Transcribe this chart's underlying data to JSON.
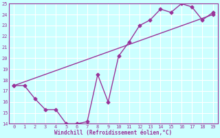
{
  "line1_x": [
    0,
    19
  ],
  "line1_y": [
    17.5,
    24.0
  ],
  "line2_x": [
    0,
    1,
    2,
    3,
    4,
    5,
    6,
    7,
    8,
    9,
    10,
    11,
    12,
    13,
    14,
    15,
    16,
    17,
    18,
    19
  ],
  "line2_y": [
    17.5,
    17.5,
    16.3,
    15.3,
    15.3,
    14.0,
    14.0,
    14.2,
    18.5,
    16.0,
    20.2,
    21.5,
    23.0,
    23.5,
    24.5,
    24.2,
    25.0,
    24.7,
    23.5,
    24.2
  ],
  "color": "#993399",
  "bg_color": "#ccffff",
  "grid_color": "#ffffff",
  "xlabel": "Windchill (Refroidissement éolien,°C)",
  "ylim": [
    14,
    25
  ],
  "xlim": [
    -0.5,
    19.5
  ],
  "yticks": [
    14,
    15,
    16,
    17,
    18,
    19,
    20,
    21,
    22,
    23,
    24,
    25
  ],
  "xticks": [
    0,
    1,
    2,
    3,
    4,
    5,
    6,
    7,
    8,
    9,
    10,
    11,
    12,
    13,
    14,
    15,
    16,
    17,
    18,
    19
  ],
  "marker": "D",
  "markersize": 2.5,
  "linewidth": 1.0,
  "tick_fontsize": 5,
  "xlabel_fontsize": 5.5
}
